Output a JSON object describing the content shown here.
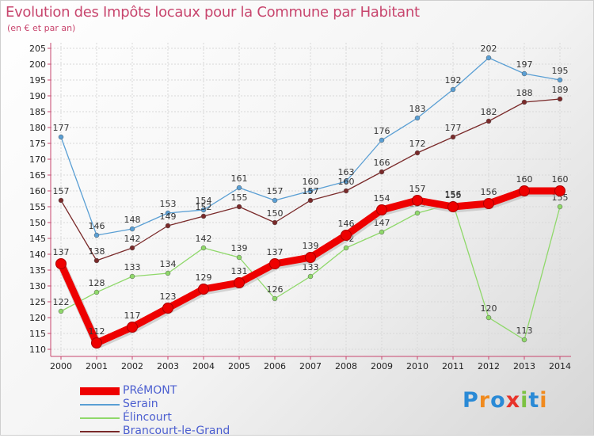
{
  "chart_data": {
    "type": "line",
    "title": "Evolution des Impôts locaux pour la Commune par Habitant",
    "subtitle": "(en € et par an)",
    "categories": [
      "2000",
      "2001",
      "2002",
      "2003",
      "2004",
      "2005",
      "2006",
      "2007",
      "2008",
      "2009",
      "2010",
      "2011",
      "2012",
      "2013",
      "2014"
    ],
    "ylim": [
      110,
      205
    ],
    "yticks": [
      110,
      115,
      120,
      125,
      130,
      135,
      140,
      145,
      150,
      155,
      160,
      165,
      170,
      175,
      180,
      185,
      190,
      195,
      200,
      205
    ],
    "series": [
      {
        "name": "Serain",
        "color": "#5a9fd4",
        "values": [
          177,
          146,
          148,
          153,
          154,
          161,
          157,
          160,
          163,
          176,
          183,
          192,
          202,
          197,
          195
        ]
      },
      {
        "name": "Brancourt-le-Grand",
        "color": "#7a2a2a",
        "values": [
          157,
          138,
          142,
          149,
          152,
          155,
          150,
          157,
          160,
          166,
          172,
          177,
          182,
          188,
          189
        ]
      },
      {
        "name": "Élincourt",
        "color": "#8fd86a",
        "values": [
          122,
          128,
          133,
          134,
          142,
          139,
          126,
          133,
          142,
          147,
          153,
          156,
          120,
          113,
          155
        ]
      },
      {
        "name": "PRéMONT",
        "color": "#ee0000",
        "values": [
          137,
          112,
          117,
          123,
          129,
          131,
          137,
          139,
          146,
          154,
          157,
          155,
          156,
          160,
          160
        ]
      }
    ]
  },
  "legend": [
    {
      "name": "PRéMONT",
      "color": "#ee0000"
    },
    {
      "name": "Serain",
      "color": "#5a9fd4"
    },
    {
      "name": "Élincourt",
      "color": "#8fd86a"
    },
    {
      "name": "Brancourt-le-Grand",
      "color": "#7a2a2a"
    }
  ],
  "logo": {
    "letters": [
      "P",
      "r",
      "o",
      "x",
      "i",
      "t",
      "i"
    ],
    "colors": [
      "#2a8ad6",
      "#f08a1e",
      "#2a8ad6",
      "#e8332a",
      "#7cc242",
      "#2a8ad6",
      "#f08a1e"
    ]
  }
}
